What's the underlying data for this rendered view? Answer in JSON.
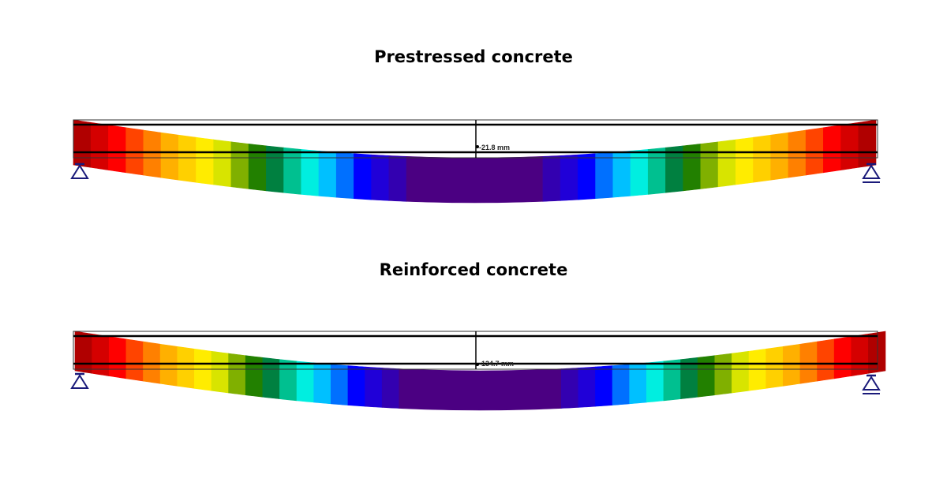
{
  "palette": [
    "#b00000",
    "#d50000",
    "#ff0000",
    "#ff4400",
    "#ff8000",
    "#ffb000",
    "#ffd000",
    "#ffec00",
    "#d8e400",
    "#80b000",
    "#228000",
    "#008040",
    "#00c090",
    "#00eee0",
    "#00c0ff",
    "#0070ff",
    "#0000ff",
    "#2000d8",
    "#3300b0",
    "#4b0082"
  ],
  "support_color": "#1a1a7a",
  "beams": [
    {
      "title": "Prestressed concrete",
      "deflection_label": "-21.8 mm",
      "deflection_mm": -21.8
    },
    {
      "title": "Reinforced concrete",
      "deflection_label": "-134.7 mm",
      "deflection_mm": -134.7
    }
  ]
}
